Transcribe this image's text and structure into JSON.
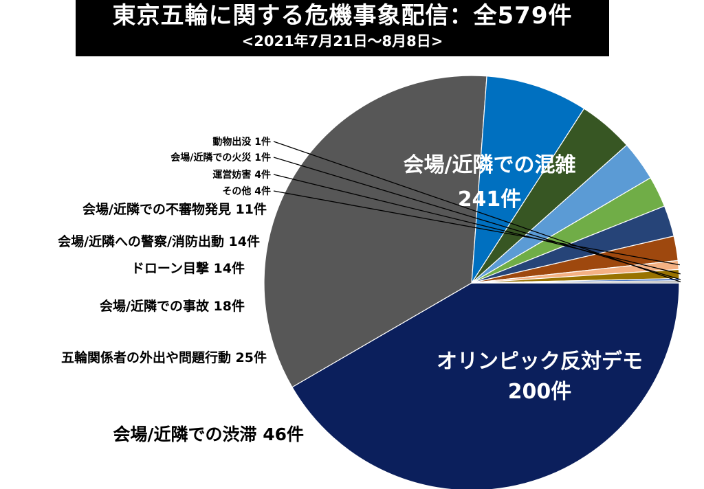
{
  "chart_data": {
    "type": "pie",
    "title": "東京五輪に関する危機事象配信：全579件",
    "subtitle": "<2021年7月21日～8月8日>",
    "total": 579,
    "slices": [
      {
        "label": "会場/近隣での混雑",
        "count_text": "241件",
        "value": 241,
        "color": "#0b1f5c"
      },
      {
        "label": "オリンピック反対デモ",
        "count_text": "200件",
        "value": 200,
        "color": "#575757"
      },
      {
        "label": "会場/近隣での渋滞 46件",
        "value": 46,
        "color": "#0070c0"
      },
      {
        "label": "五輪関係者の外出や問題行動 25件",
        "value": 25,
        "color": "#375623"
      },
      {
        "label": "会場/近隣での事故 18件",
        "value": 18,
        "color": "#5b9bd5"
      },
      {
        "label": "ドローン目撃 14件",
        "value": 14,
        "color": "#70ad47"
      },
      {
        "label": "会場/近隣への警察/消防出動 14件",
        "value": 14,
        "color": "#264478"
      },
      {
        "label": "会場/近隣での不審物発見 11件",
        "value": 11,
        "color": "#9e480e"
      },
      {
        "label": "その他 4件",
        "value": 4,
        "color": "#f4b183"
      },
      {
        "label": "運営妨害 4件",
        "value": 4,
        "color": "#997300"
      },
      {
        "label": "会場/近隣での火災 1件",
        "value": 1,
        "color": "#4472c4"
      },
      {
        "label": "動物出没 1件",
        "value": 1,
        "color": "#a5a5a5"
      }
    ]
  }
}
